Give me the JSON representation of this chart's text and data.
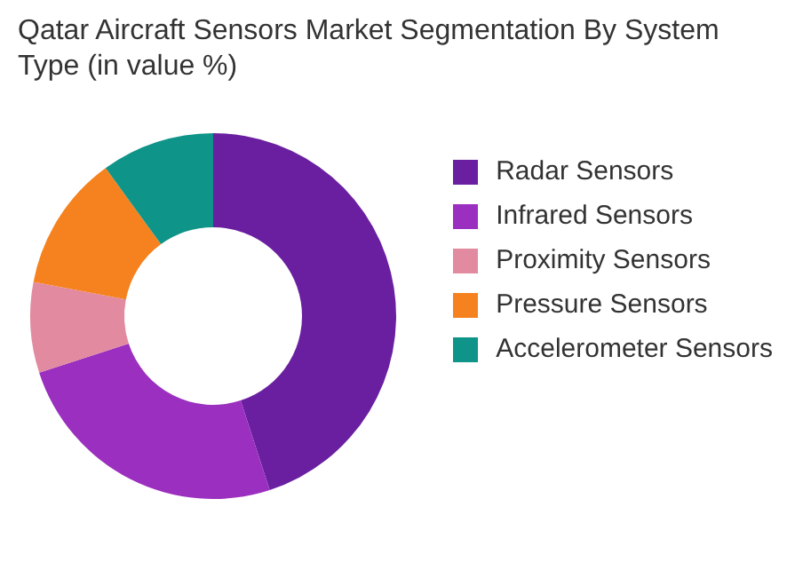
{
  "chart_data": {
    "type": "donut",
    "title": "Qatar Aircraft Sensors Market Segmentation By System Type (in value %)",
    "categories": [
      "Radar Sensors",
      "Infrared Sensors",
      "Proximity Sensors",
      "Pressure Sensors",
      "Accelerometer Sensors"
    ],
    "values": [
      45,
      25,
      8,
      12,
      10
    ],
    "colors": [
      "#6a1fa0",
      "#9b2fbf",
      "#e28aa0",
      "#f5821f",
      "#0e9488"
    ],
    "legend": "right"
  }
}
